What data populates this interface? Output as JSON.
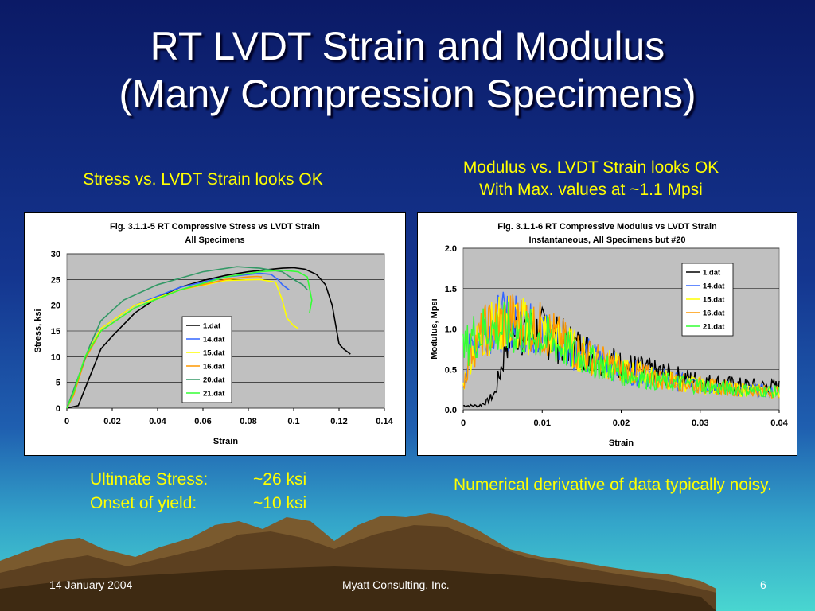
{
  "slide": {
    "title_line1": "RT LVDT Strain and Modulus",
    "title_line2": "(Many Compression Specimens)",
    "left_caption": "Stress vs. LVDT Strain looks OK",
    "right_caption_line1": "Modulus vs. LVDT Strain looks OK",
    "right_caption_line2": "With Max. values at ~1.1 Mpsi",
    "stats": [
      {
        "label": "Ultimate Stress:",
        "value": "~26 ksi"
      },
      {
        "label": "Onset of yield:",
        "value": "~10 ksi"
      }
    ],
    "note": "Numerical derivative of data typically noisy.",
    "footer_date": "14 January 2004",
    "footer_company": "Myatt Consulting, Inc.",
    "footer_page": "6"
  },
  "chart_data": [
    {
      "type": "line",
      "title": "Fig. 3.1.1-5 RT Compressive Stress vs LVDT Strain",
      "subtitle": "All Specimens",
      "xlabel": "Strain",
      "ylabel": "Stress, ksi",
      "xlim": [
        0,
        0.14
      ],
      "ylim": [
        0,
        30
      ],
      "xticks": [
        "0",
        "0.02",
        "0.04",
        "0.06",
        "0.08",
        "0.1",
        "0.12",
        "0.14"
      ],
      "yticks": [
        "0",
        "5",
        "10",
        "15",
        "20",
        "25",
        "30"
      ],
      "grid": "horizontal",
      "legend_position": "center",
      "series": [
        {
          "name": "1.dat",
          "color": "#000000",
          "x": [
            0,
            0.005,
            0.01,
            0.015,
            0.02,
            0.03,
            0.04,
            0.05,
            0.06,
            0.07,
            0.08,
            0.09,
            0.095,
            0.1,
            0.105,
            0.11,
            0.114,
            0.117,
            0.119,
            0.12,
            0.122,
            0.125
          ],
          "y": [
            0,
            0.5,
            6,
            11.5,
            14,
            18.5,
            21.5,
            23.5,
            24.8,
            25.8,
            26.5,
            27,
            27.2,
            27.3,
            27,
            26,
            24,
            20,
            15,
            12.5,
            11.5,
            10.5
          ]
        },
        {
          "name": "14.dat",
          "color": "#3366ff",
          "x": [
            0,
            0.003,
            0.008,
            0.015,
            0.03,
            0.05,
            0.07,
            0.085,
            0.09,
            0.093,
            0.095,
            0.098
          ],
          "y": [
            0,
            3,
            10,
            15.5,
            20,
            23.5,
            25.5,
            26.2,
            26,
            25,
            24,
            23
          ]
        },
        {
          "name": "15.dat",
          "color": "#ffff00",
          "x": [
            0,
            0.003,
            0.008,
            0.015,
            0.03,
            0.05,
            0.07,
            0.085,
            0.092,
            0.095,
            0.097,
            0.1,
            0.102
          ],
          "y": [
            0,
            3,
            10,
            15.5,
            20,
            23,
            24.8,
            25,
            24.5,
            21,
            17.5,
            16,
            15.5
          ]
        },
        {
          "name": "16.dat",
          "color": "#ff9900",
          "x": [
            0,
            0.003,
            0.008,
            0.015,
            0.03,
            0.05,
            0.07,
            0.08,
            0.084,
            0.086
          ],
          "y": [
            0,
            2.5,
            9.5,
            15,
            19.5,
            23,
            25,
            25.5,
            25.6,
            25.5
          ]
        },
        {
          "name": "20.dat",
          "color": "#339966",
          "x": [
            0,
            0.005,
            0.01,
            0.015,
            0.025,
            0.04,
            0.06,
            0.075,
            0.085,
            0.095,
            0.1,
            0.104,
            0.106
          ],
          "y": [
            0,
            6,
            12,
            17,
            21,
            24,
            26.5,
            27.5,
            27.2,
            26.5,
            25,
            24,
            23
          ]
        },
        {
          "name": "21.dat",
          "color": "#33ff33",
          "x": [
            0,
            0.003,
            0.008,
            0.015,
            0.03,
            0.05,
            0.07,
            0.085,
            0.095,
            0.102,
            0.106,
            0.108,
            0.107
          ],
          "y": [
            0,
            3,
            10,
            15,
            19.5,
            23,
            25.5,
            26.5,
            26.8,
            26.5,
            25.5,
            21,
            18.5
          ]
        }
      ]
    },
    {
      "type": "line",
      "title": "Fig. 3.1.1-6 RT Compressive Modulus vs LVDT Strain",
      "subtitle": "Instantaneous, All Specimens but #20",
      "xlabel": "Strain",
      "ylabel": "Modulus, Mpsi",
      "xlim": [
        0,
        0.04
      ],
      "ylim": [
        0,
        2.0
      ],
      "xticks": [
        "0",
        "0.01",
        "0.02",
        "0.03",
        "0.04"
      ],
      "yticks": [
        "0.0",
        "0.5",
        "1.0",
        "1.5",
        "2.0"
      ],
      "grid": "horizontal",
      "legend_position": "top-right",
      "noisy": true,
      "series": [
        {
          "name": "1.dat",
          "color": "#000000",
          "x": [
            0,
            0.002,
            0.003,
            0.004,
            0.005,
            0.0055,
            0.007,
            0.01,
            0.015,
            0.02,
            0.025,
            0.03,
            0.035,
            0.04
          ],
          "y": [
            0.05,
            0.05,
            0.1,
            0.2,
            0.6,
            0.9,
            1.0,
            0.95,
            0.75,
            0.55,
            0.45,
            0.35,
            0.3,
            0.28
          ]
        },
        {
          "name": "14.dat",
          "color": "#3366ff",
          "x": [
            0,
            0.001,
            0.003,
            0.006,
            0.01,
            0.015,
            0.02,
            0.025,
            0.03,
            0.035,
            0.04
          ],
          "y": [
            0.3,
            0.8,
            1.05,
            1.1,
            0.95,
            0.7,
            0.5,
            0.38,
            0.3,
            0.25,
            0.22
          ]
        },
        {
          "name": "15.dat",
          "color": "#ffff00",
          "x": [
            0,
            0.001,
            0.003,
            0.006,
            0.01,
            0.015,
            0.02,
            0.025,
            0.03,
            0.035,
            0.04
          ],
          "y": [
            0.3,
            0.7,
            1.0,
            1.1,
            0.95,
            0.7,
            0.5,
            0.38,
            0.3,
            0.25,
            0.22
          ]
        },
        {
          "name": "16.dat",
          "color": "#ff9900",
          "x": [
            0,
            0.001,
            0.003,
            0.006,
            0.01,
            0.015,
            0.02,
            0.025,
            0.03,
            0.035,
            0.04
          ],
          "y": [
            0.3,
            0.75,
            1.0,
            1.1,
            1.0,
            0.7,
            0.5,
            0.38,
            0.3,
            0.25,
            0.22
          ]
        },
        {
          "name": "21.dat",
          "color": "#33ff33",
          "x": [
            0,
            0.001,
            0.003,
            0.006,
            0.01,
            0.015,
            0.02,
            0.025,
            0.03,
            0.035,
            0.04
          ],
          "y": [
            0.7,
            0.9,
            1.0,
            1.0,
            0.9,
            0.65,
            0.45,
            0.35,
            0.3,
            0.25,
            0.22
          ]
        }
      ]
    }
  ]
}
